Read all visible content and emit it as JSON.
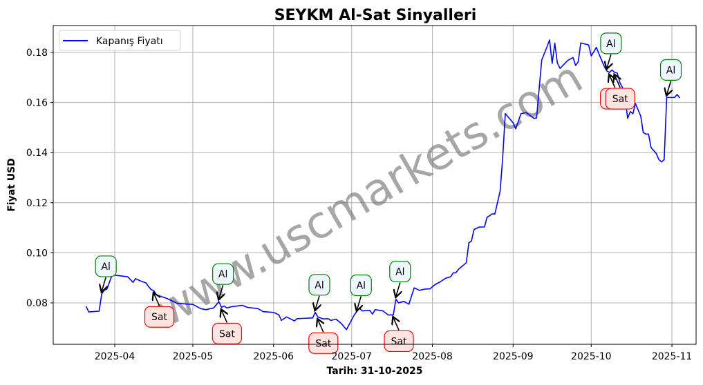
{
  "chart_data": {
    "type": "line",
    "title": "SEYKM Al-Sat Sinyalleri",
    "xlabel": "Tarih: 31-10-2025",
    "ylabel": "Fiyat USD",
    "ylim": [
      0.0635,
      0.1905
    ],
    "xlim": [
      "2025-03-14",
      "2025-11-09"
    ],
    "grid": true,
    "legend_position": "upper left",
    "legend": [
      "Kapanış Fiyatı"
    ],
    "x_ticks": [
      "2025-04",
      "2025-05",
      "2025-06",
      "2025-07",
      "2025-08",
      "2025-09",
      "2025-10",
      "2025-11"
    ],
    "y_ticks": [
      "0.08",
      "0.10",
      "0.12",
      "0.14",
      "0.16",
      "0.18"
    ],
    "series": [
      {
        "name": "Kapanış Fiyatı",
        "color": "#0000ff",
        "points": [
          [
            "2025-03-21",
            0.0786
          ],
          [
            "2025-03-22",
            0.0764
          ],
          [
            "2025-03-26",
            0.0767
          ],
          [
            "2025-03-27",
            0.0836
          ],
          [
            "2025-03-28",
            0.0851
          ],
          [
            "2025-03-29",
            0.0855
          ],
          [
            "2025-03-31",
            0.0912
          ],
          [
            "2025-04-04",
            0.0907
          ],
          [
            "2025-04-06",
            0.0904
          ],
          [
            "2025-04-08",
            0.0882
          ],
          [
            "2025-04-09",
            0.0897
          ],
          [
            "2025-04-11",
            0.0887
          ],
          [
            "2025-04-13",
            0.088
          ],
          [
            "2025-04-14",
            0.0865
          ],
          [
            "2025-04-15",
            0.0853
          ],
          [
            "2025-04-16",
            0.0849
          ],
          [
            "2025-04-17",
            0.0832
          ],
          [
            "2025-04-21",
            0.0818
          ],
          [
            "2025-04-25",
            0.0798
          ],
          [
            "2025-04-28",
            0.0796
          ],
          [
            "2025-05-01",
            0.0794
          ],
          [
            "2025-05-04",
            0.0777
          ],
          [
            "2025-05-06",
            0.0773
          ],
          [
            "2025-05-09",
            0.078
          ],
          [
            "2025-05-11",
            0.0805
          ],
          [
            "2025-05-12",
            0.0782
          ],
          [
            "2025-05-13",
            0.0788
          ],
          [
            "2025-05-14",
            0.078
          ],
          [
            "2025-05-16",
            0.0785
          ],
          [
            "2025-05-20",
            0.079
          ],
          [
            "2025-05-22",
            0.0782
          ],
          [
            "2025-05-26",
            0.0777
          ],
          [
            "2025-05-28",
            0.0765
          ],
          [
            "2025-06-01",
            0.0762
          ],
          [
            "2025-06-03",
            0.0753
          ],
          [
            "2025-06-04",
            0.073
          ],
          [
            "2025-06-06",
            0.0744
          ],
          [
            "2025-06-09",
            0.0728
          ],
          [
            "2025-06-10",
            0.0737
          ],
          [
            "2025-06-12",
            0.0738
          ],
          [
            "2025-06-16",
            0.074
          ],
          [
            "2025-06-17",
            0.0762
          ],
          [
            "2025-06-18",
            0.0744
          ],
          [
            "2025-06-20",
            0.0736
          ],
          [
            "2025-06-22",
            0.0737
          ],
          [
            "2025-06-23",
            0.073
          ],
          [
            "2025-06-25",
            0.0735
          ],
          [
            "2025-06-27",
            0.0718
          ],
          [
            "2025-06-29",
            0.0693
          ],
          [
            "2025-07-02",
            0.0752
          ],
          [
            "2025-07-04",
            0.078
          ],
          [
            "2025-07-05",
            0.0768
          ],
          [
            "2025-07-08",
            0.077
          ],
          [
            "2025-07-09",
            0.0755
          ],
          [
            "2025-07-10",
            0.0773
          ],
          [
            "2025-07-13",
            0.0768
          ],
          [
            "2025-07-15",
            0.0752
          ],
          [
            "2025-07-17",
            0.0752
          ],
          [
            "2025-07-18",
            0.0815
          ],
          [
            "2025-07-19",
            0.08
          ],
          [
            "2025-07-21",
            0.0806
          ],
          [
            "2025-07-23",
            0.0795
          ],
          [
            "2025-07-25",
            0.086
          ],
          [
            "2025-07-27",
            0.085
          ],
          [
            "2025-07-29",
            0.0855
          ],
          [
            "2025-07-31",
            0.0856
          ],
          [
            "2025-08-02",
            0.0873
          ],
          [
            "2025-08-04",
            0.0884
          ],
          [
            "2025-08-06",
            0.0898
          ],
          [
            "2025-08-08",
            0.0904
          ],
          [
            "2025-08-09",
            0.092
          ],
          [
            "2025-08-10",
            0.092
          ],
          [
            "2025-08-11",
            0.0934
          ],
          [
            "2025-08-14",
            0.096
          ],
          [
            "2025-08-15",
            0.104
          ],
          [
            "2025-08-16",
            0.1047
          ],
          [
            "2025-08-17",
            0.1093
          ],
          [
            "2025-08-19",
            0.1103
          ],
          [
            "2025-08-21",
            0.1103
          ],
          [
            "2025-08-22",
            0.1142
          ],
          [
            "2025-08-24",
            0.1155
          ],
          [
            "2025-08-25",
            0.1155
          ],
          [
            "2025-08-27",
            0.1246
          ],
          [
            "2025-08-28",
            0.1378
          ],
          [
            "2025-08-29",
            0.1556
          ],
          [
            "2025-09-01",
            0.1519
          ],
          [
            "2025-09-02",
            0.1495
          ],
          [
            "2025-09-04",
            0.1555
          ],
          [
            "2025-09-06",
            0.156
          ],
          [
            "2025-09-09",
            0.1537
          ],
          [
            "2025-09-10",
            0.1538
          ],
          [
            "2025-09-12",
            0.177
          ],
          [
            "2025-09-14",
            0.1822
          ],
          [
            "2025-09-15",
            0.185
          ],
          [
            "2025-09-16",
            0.1756
          ],
          [
            "2025-09-17",
            0.1837
          ],
          [
            "2025-09-18",
            0.1758
          ],
          [
            "2025-09-19",
            0.1736
          ],
          [
            "2025-09-22",
            0.1768
          ],
          [
            "2025-09-24",
            0.178
          ],
          [
            "2025-09-25",
            0.1748
          ],
          [
            "2025-09-26",
            0.1763
          ],
          [
            "2025-09-27",
            0.1838
          ],
          [
            "2025-09-30",
            0.183
          ],
          [
            "2025-10-01",
            0.1786
          ],
          [
            "2025-10-03",
            0.182
          ],
          [
            "2025-10-04",
            0.1793
          ],
          [
            "2025-10-06",
            0.1745
          ],
          [
            "2025-10-07",
            0.1726
          ],
          [
            "2025-10-08",
            0.172
          ],
          [
            "2025-10-09",
            0.173
          ],
          [
            "2025-10-10",
            0.172
          ],
          [
            "2025-10-11",
            0.1718
          ],
          [
            "2025-10-12",
            0.168
          ],
          [
            "2025-10-13",
            0.166
          ],
          [
            "2025-10-14",
            0.1621
          ],
          [
            "2025-10-15",
            0.1537
          ],
          [
            "2025-10-16",
            0.1564
          ],
          [
            "2025-10-17",
            0.1555
          ],
          [
            "2025-10-18",
            0.1596
          ],
          [
            "2025-10-20",
            0.1546
          ],
          [
            "2025-10-21",
            0.148
          ],
          [
            "2025-10-22",
            0.1474
          ],
          [
            "2025-10-23",
            0.1474
          ],
          [
            "2025-10-24",
            0.142
          ],
          [
            "2025-10-26",
            0.1396
          ],
          [
            "2025-10-27",
            0.1372
          ],
          [
            "2025-10-28",
            0.1363
          ],
          [
            "2025-10-29",
            0.1372
          ],
          [
            "2025-10-30",
            0.162
          ],
          [
            "2025-11-01",
            0.162
          ],
          [
            "2025-11-02",
            0.162
          ],
          [
            "2025-11-03",
            0.1632
          ],
          [
            "2025-11-04",
            0.1618
          ]
        ]
      }
    ],
    "annotations": [
      {
        "type": "Al",
        "date": "2025-03-27",
        "value": 0.0836
      },
      {
        "type": "Sat",
        "date": "2025-04-16",
        "value": 0.0849
      },
      {
        "type": "Al",
        "date": "2025-05-11",
        "value": 0.0805
      },
      {
        "type": "Sat",
        "date": "2025-05-12",
        "value": 0.0782
      },
      {
        "type": "Al",
        "date": "2025-06-17",
        "value": 0.0762
      },
      {
        "type": "Sat",
        "date": "2025-06-18",
        "value": 0.0744
      },
      {
        "type": "Al",
        "date": "2025-07-03",
        "value": 0.076
      },
      {
        "type": "Sat",
        "date": "2025-07-17",
        "value": 0.0752
      },
      {
        "type": "Al",
        "date": "2025-07-18",
        "value": 0.0815
      },
      {
        "type": "Al",
        "date": "2025-10-07",
        "value": 0.1726
      },
      {
        "type": "Sat",
        "date": "2025-10-08",
        "value": 0.172
      },
      {
        "type": "Sat",
        "date": "2025-10-10",
        "value": 0.172
      },
      {
        "type": "Al",
        "date": "2025-10-30",
        "value": 0.162
      }
    ],
    "watermark": "www.uscmarkets.com"
  },
  "colors": {
    "line": "#0000ff",
    "buy_border": "#008000",
    "buy_fill": "#eef6ff",
    "sell_border": "#ff0000",
    "sell_fill": "#ffe4e1",
    "grid": "#b0b0b0",
    "watermark": "#808080"
  }
}
